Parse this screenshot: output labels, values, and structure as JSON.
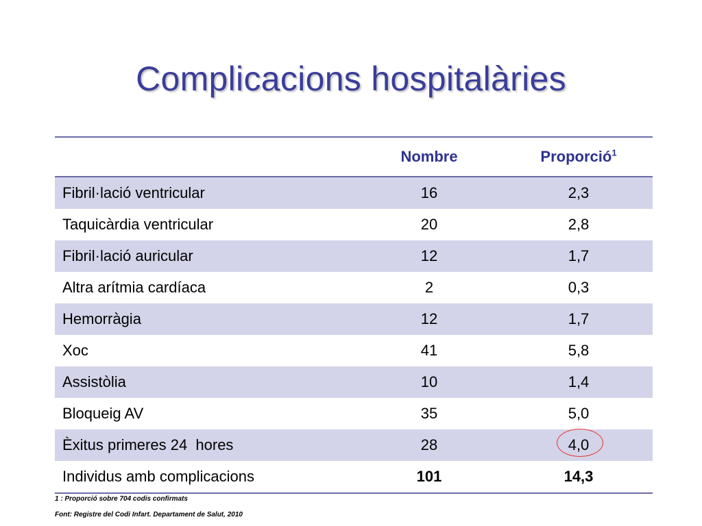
{
  "title": "Complicacions hospitalàries",
  "table": {
    "headers": {
      "label": "",
      "nombre": "Nombre",
      "proporcio": "Proporció",
      "proporcio_sup": "1"
    },
    "rows": [
      {
        "label": "Fibril·lació ventricular",
        "nombre": "16",
        "proporcio": "2,3"
      },
      {
        "label": "Taquicàrdia ventricular",
        "nombre": "20",
        "proporcio": "2,8"
      },
      {
        "label": "Fibril·lació auricular",
        "nombre": "12",
        "proporcio": "1,7"
      },
      {
        "label": "Altra arítmia cardíaca",
        "nombre": "2",
        "proporcio": "0,3"
      },
      {
        "label": "Hemorràgia",
        "nombre": "12",
        "proporcio": "1,7"
      },
      {
        "label": "Xoc",
        "nombre": "41",
        "proporcio": "5,8"
      },
      {
        "label": "Assistòlia",
        "nombre": "10",
        "proporcio": "1,4"
      },
      {
        "label": "Bloqueig AV",
        "nombre": "35",
        "proporcio": "5,0"
      },
      {
        "label": "Èxitus primeres 24  hores",
        "nombre": "28",
        "proporcio": "4,0"
      },
      {
        "label": "Individus amb complicacions",
        "nombre": "101",
        "proporcio": "14,3"
      }
    ]
  },
  "footnotes": {
    "note1": "1 : Proporció sobre 704 codis confirmats",
    "source": "Font: Registre del Codi Infart. Departament de Salut, 2010"
  },
  "colors": {
    "title": "#3a3d99",
    "header_text": "#2e3190",
    "band": "#d3d4e9",
    "rule": "#6a6ba8",
    "highlight_circle": "#e8342c"
  }
}
